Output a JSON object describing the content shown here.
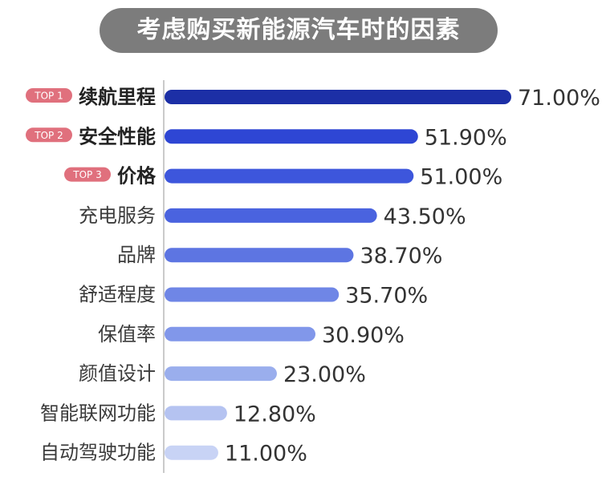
{
  "chart_data": {
    "type": "bar",
    "orientation": "horizontal",
    "title": "考虑购买新能源汽车时的因素",
    "categories": [
      "续航里程",
      "安全性能",
      "价格",
      "充电服务",
      "品牌",
      "舒适程度",
      "保值率",
      "颜值设计",
      "智能联网功能",
      "自动驾驶功能"
    ],
    "values": [
      71.0,
      51.9,
      51.0,
      43.5,
      38.7,
      35.7,
      30.9,
      23.0,
      12.8,
      11.0
    ],
    "value_labels": [
      "71.00%",
      "51.90%",
      "51.00%",
      "43.50%",
      "38.70%",
      "35.70%",
      "30.90%",
      "23.00%",
      "12.80%",
      "11.00%"
    ],
    "unit": "%",
    "badges": [
      "TOP 1",
      "TOP 2",
      "TOP 3"
    ],
    "bar_colors": [
      "#1c2fa6",
      "#2e46d4",
      "#3d56dc",
      "#4a63df",
      "#5d75e2",
      "#6f86e6",
      "#8197ea",
      "#9aaeed",
      "#b5c3f1",
      "#c8d3f5"
    ],
    "badge_color": "#e0707d",
    "axis_color": "#b9b9b9",
    "xlim": [
      0,
      71
    ],
    "grid": false,
    "legend": "none"
  }
}
